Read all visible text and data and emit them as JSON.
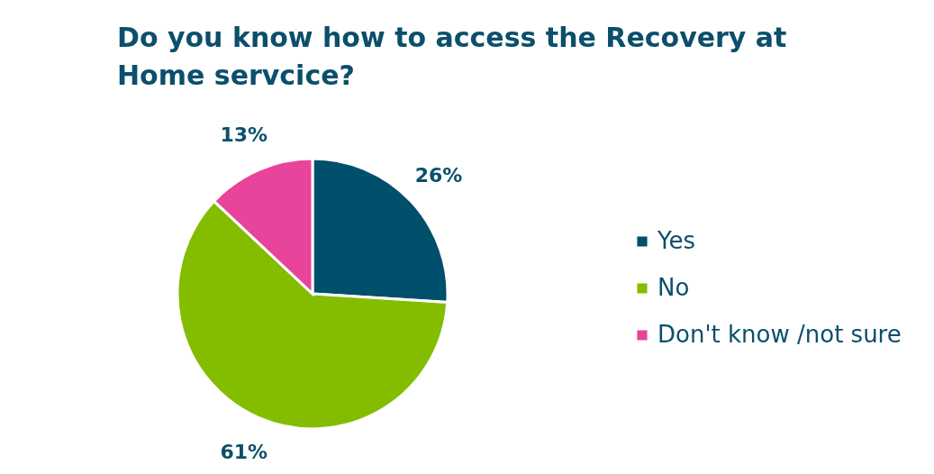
{
  "chart_data": {
    "type": "pie",
    "title": "Do you know how to access the Recovery at Home servcice?",
    "categories": [
      "Yes",
      "No",
      "Don't know /not sure"
    ],
    "values": [
      26,
      61,
      13
    ],
    "colors": [
      "#004f6b",
      "#84bd00",
      "#e8449b"
    ],
    "value_labels": [
      "26%",
      "61%",
      "13%"
    ],
    "legend": "right"
  }
}
